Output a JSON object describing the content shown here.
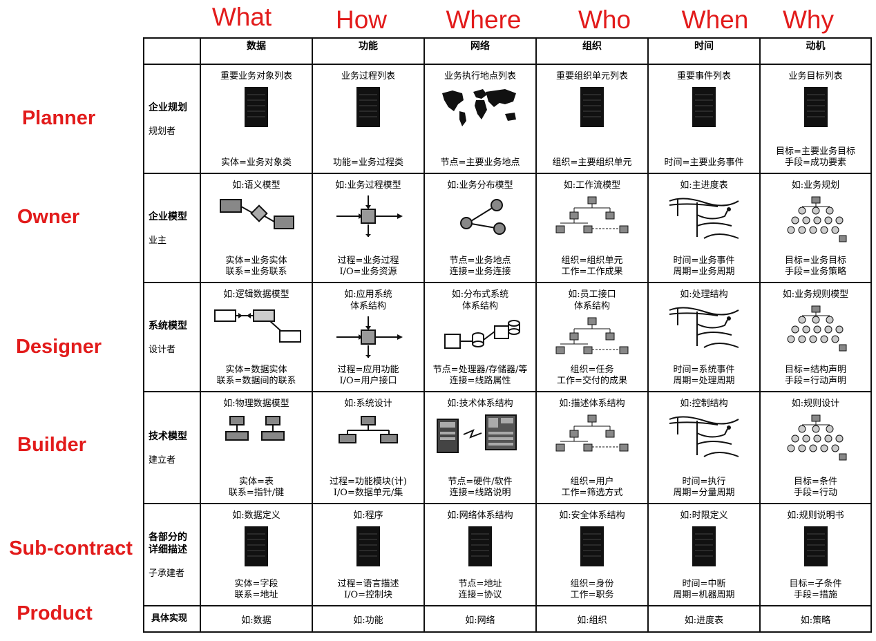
{
  "questions": [
    "What",
    "How",
    "Where",
    "Who",
    "When",
    "Why"
  ],
  "roles": [
    "Planner",
    "Owner",
    "Designer",
    "Builder",
    "Sub-contract",
    "Product"
  ],
  "headers": [
    "数据",
    "功能",
    "网络",
    "组织",
    "时间",
    "动机"
  ],
  "rows": [
    {
      "title": "企业规划",
      "role": "规划者",
      "cells": [
        {
          "cap": "重要业务对象列表",
          "icon": "document-icon",
          "desc": "实体=业务对象类"
        },
        {
          "cap": "业务过程列表",
          "icon": "document-icon",
          "desc": "功能=业务过程类"
        },
        {
          "cap": "业务执行地点列表",
          "icon": "world-map-icon",
          "desc": "节点=主要业务地点"
        },
        {
          "cap": "重要组织单元列表",
          "icon": "document-icon",
          "desc": "组织=主要组织单元"
        },
        {
          "cap": "重要事件列表",
          "icon": "document-icon",
          "desc": "时间=主要业务事件"
        },
        {
          "cap": "业务目标列表",
          "icon": "document-icon",
          "desc": "目标=主要业务目标 手段=成功要素"
        }
      ]
    },
    {
      "title": "企业模型",
      "role": "业主",
      "cells": [
        {
          "cap": "如:语义模型",
          "icon": "entity-relation-icon",
          "desc": "实体=业务实体 联系=业务联系"
        },
        {
          "cap": "如:业务过程模型",
          "icon": "process-arrows-icon",
          "desc": "过程=业务过程 I/O=业务资源"
        },
        {
          "cap": "如:业务分布模型",
          "icon": "network-nodes-icon",
          "desc": "节点=业务地点 连接=业务连接"
        },
        {
          "cap": "如:工作流模型",
          "icon": "org-tree-icon",
          "desc": "组织=组织单元 工作=工作成果"
        },
        {
          "cap": "如:主进度表",
          "icon": "timing-chart-icon",
          "desc": "时间=业务事件 周期=业务周期"
        },
        {
          "cap": "如:业务规划",
          "icon": "goal-tree-icon",
          "desc": "目标=业务目标 手段=业务策略"
        }
      ]
    },
    {
      "title": "系统模型",
      "role": "设计者",
      "cells": [
        {
          "cap": "如:逻辑数据模型",
          "icon": "logical-data-icon",
          "desc": "实体=数据实体 联系=数据间的联系"
        },
        {
          "cap": "如:应用系统 体系结构",
          "icon": "process-arrows-icon",
          "desc": "过程=应用功能 I/O=用户接口"
        },
        {
          "cap": "如:分布式系统 体系结构",
          "icon": "distributed-system-icon",
          "desc": "节点=处理器/存储器/等 连接=线路属性"
        },
        {
          "cap": "如:员工接口 体系结构",
          "icon": "org-tree-icon",
          "desc": "组织=任务 工作=交付的成果"
        },
        {
          "cap": "如:处理结构",
          "icon": "timing-chart-icon",
          "desc": "时间=系统事件 周期=处理周期"
        },
        {
          "cap": "如:业务规则模型",
          "icon": "goal-tree-icon",
          "desc": "目标=结构声明 手段=行动声明"
        }
      ]
    },
    {
      "title": "技术模型",
      "role": "建立者",
      "cells": [
        {
          "cap": "如:物理数据模型",
          "icon": "physical-data-icon",
          "desc": "实体=表 联系=指针/键"
        },
        {
          "cap": "如:系统设计",
          "icon": "system-design-icon",
          "desc": "过程=功能模块(计) I/O=数据单元/集"
        },
        {
          "cap": "如:技术体系结构",
          "icon": "hardware-icon",
          "desc": "节点=硬件/软件 连接=线路说明"
        },
        {
          "cap": "如:描述体系结构",
          "icon": "org-tree-icon",
          "desc": "组织=用户 工作=筛选方式"
        },
        {
          "cap": "如:控制结构",
          "icon": "timing-chart-icon",
          "desc": "时间=执行 周期=分量周期"
        },
        {
          "cap": "如:规则设计",
          "icon": "goal-tree-icon",
          "desc": "目标=条件 手段=行动"
        }
      ]
    },
    {
      "title": "各部分的详细描述",
      "role": "子承建者",
      "cells": [
        {
          "cap": "如:数据定义",
          "icon": "document-icon",
          "desc": "实体=字段 联系=地址"
        },
        {
          "cap": "如:程序",
          "icon": "document-icon",
          "desc": "过程=语言描述 I/O=控制块"
        },
        {
          "cap": "如:网络体系结构",
          "icon": "document-icon",
          "desc": "节点=地址 连接=协议"
        },
        {
          "cap": "如:安全体系结构",
          "icon": "document-icon",
          "desc": "组织=身份 工作=职务"
        },
        {
          "cap": "如:时限定义",
          "icon": "document-icon",
          "desc": "时间=中断 周期=机器周期"
        },
        {
          "cap": "如:规则说明书",
          "icon": "document-icon",
          "desc": "目标=子条件 手段=措施"
        }
      ]
    }
  ],
  "final_row": {
    "title": "具体实现",
    "cells": [
      "如:数据",
      "如:功能",
      "如:网络",
      "如:组织",
      "如:进度表",
      "如:策略"
    ]
  }
}
